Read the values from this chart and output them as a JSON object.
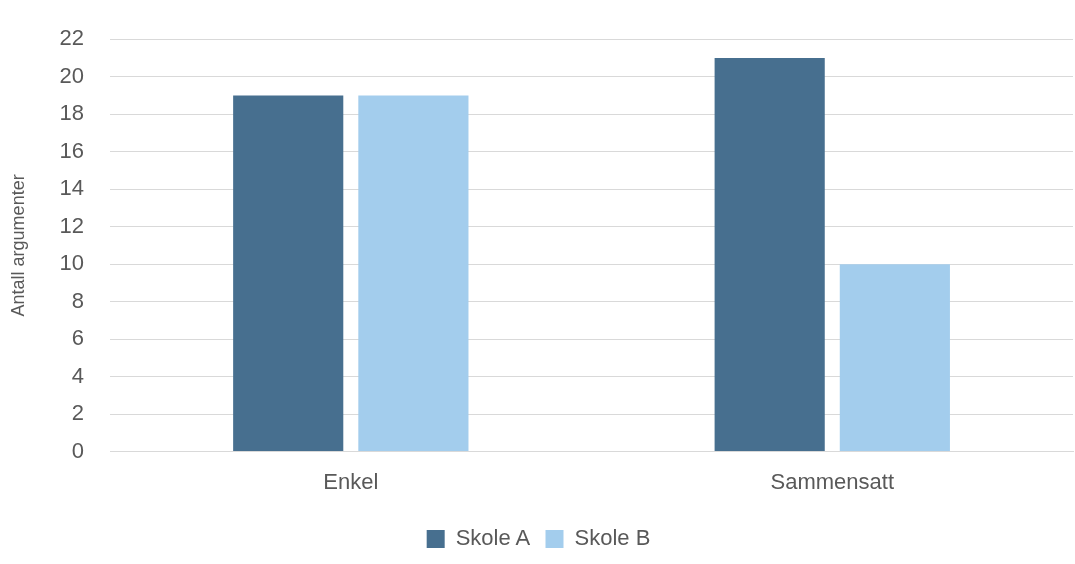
{
  "chart_data": {
    "type": "bar",
    "ylabel": "Antall argumenter",
    "categories": [
      "Enkel",
      "Sammensatt"
    ],
    "series": [
      {
        "name": "Skole A",
        "color": "#476f8f",
        "values": [
          19,
          21
        ]
      },
      {
        "name": "Skole B",
        "color": "#a3cded",
        "values": [
          19,
          10
        ]
      }
    ],
    "ylim": [
      0,
      22
    ],
    "yticks": [
      0,
      2,
      4,
      6,
      8,
      10,
      12,
      14,
      16,
      18,
      20,
      22
    ],
    "grid": "y",
    "legend": "bottom"
  }
}
